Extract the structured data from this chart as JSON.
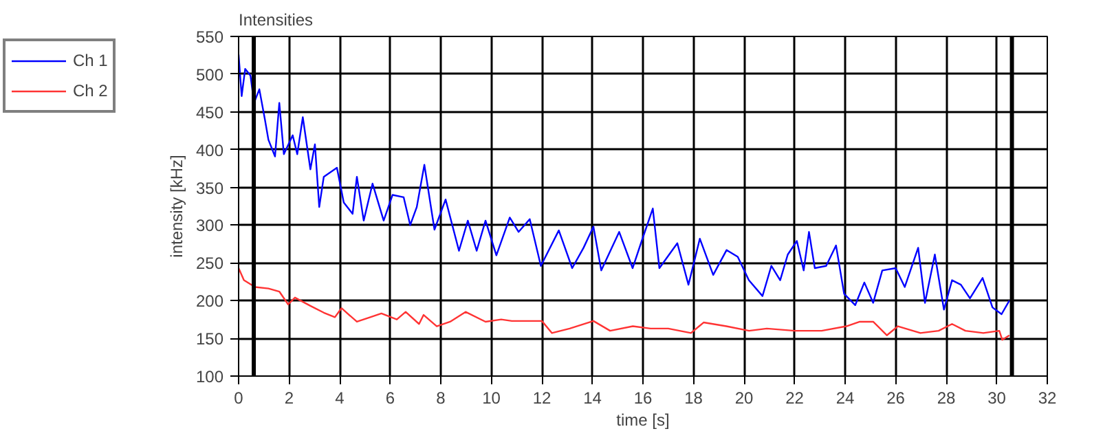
{
  "chart_data": {
    "type": "line",
    "title": "Intensities",
    "xlabel": "time [s]",
    "ylabel": "intensity [kHz]",
    "xlim": [
      0,
      32
    ],
    "ylim": [
      100,
      550
    ],
    "xticks": [
      0,
      2,
      4,
      6,
      8,
      10,
      12,
      14,
      16,
      18,
      20,
      22,
      24,
      26,
      28,
      30,
      32
    ],
    "yticks": [
      100,
      150,
      200,
      250,
      300,
      350,
      400,
      450,
      500,
      550
    ],
    "grid": true,
    "legend": "top left",
    "line_style": "solid",
    "ref_lines": [
      {
        "axis": "x",
        "value": 0.6,
        "color": "#000000"
      },
      {
        "axis": "x",
        "value": 30.6,
        "color": "#000000"
      }
    ],
    "series": [
      {
        "name": "Ch 1",
        "color": "#0000ff",
        "x": [
          0,
          0.12,
          0.26,
          0.47,
          0.61,
          0.82,
          1.04,
          1.18,
          1.44,
          1.61,
          1.79,
          2.14,
          2.32,
          2.54,
          2.84,
          3.02,
          3.19,
          3.37,
          3.89,
          4.16,
          4.51,
          4.68,
          4.95,
          5.3,
          5.74,
          6.09,
          6.53,
          6.79,
          7.05,
          7.35,
          7.75,
          8.19,
          8.72,
          9.07,
          9.42,
          9.77,
          10.2,
          10.73,
          11.08,
          11.52,
          11.96,
          12.67,
          13.2,
          13.65,
          14.04,
          14.35,
          15.06,
          15.59,
          15.95,
          16.39,
          16.65,
          17.36,
          17.8,
          18.25,
          18.78,
          19.31,
          19.75,
          20.19,
          20.73,
          21.08,
          21.43,
          21.73,
          22.09,
          22.36,
          22.57,
          22.8,
          23.25,
          23.64,
          23.96,
          24.4,
          24.76,
          25.11,
          25.47,
          26.0,
          26.36,
          26.89,
          27.16,
          27.55,
          27.91,
          28.23,
          28.58,
          28.94,
          29.44,
          29.83,
          30.19,
          30.5
        ],
        "values": [
          526,
          471,
          507,
          498,
          462,
          480,
          440,
          413,
          391,
          462,
          394,
          419,
          394,
          443,
          374,
          407,
          324,
          364,
          376,
          330,
          315,
          364,
          306,
          355,
          306,
          340,
          337,
          300,
          324,
          380,
          294,
          334,
          266,
          306,
          266,
          306,
          260,
          310,
          291,
          308,
          246,
          293,
          243,
          270,
          298,
          240,
          291,
          243,
          279,
          322,
          243,
          276,
          221,
          282,
          234,
          267,
          258,
          227,
          206,
          246,
          227,
          261,
          279,
          240,
          291,
          243,
          246,
          273,
          209,
          194,
          224,
          197,
          240,
          243,
          218,
          270,
          197,
          261,
          188,
          227,
          221,
          203,
          230,
          191,
          182,
          200
        ]
      },
      {
        "name": "Ch 2",
        "color": "#ff3333",
        "x": [
          0,
          0.21,
          0.65,
          1.18,
          1.61,
          1.96,
          2.23,
          2.84,
          3.37,
          3.81,
          4.07,
          4.68,
          5.21,
          5.65,
          6.26,
          6.61,
          7.14,
          7.32,
          7.84,
          8.37,
          8.98,
          9.77,
          10.39,
          10.81,
          11.52,
          12.0,
          12.4,
          13.1,
          14.04,
          14.7,
          15.6,
          16.3,
          17.0,
          17.9,
          18.4,
          19.3,
          20.2,
          20.9,
          22.0,
          23.07,
          24.05,
          24.58,
          25.11,
          25.65,
          26.09,
          26.98,
          27.7,
          28.23,
          28.76,
          29.47,
          30.1,
          30.22,
          30.5
        ],
        "values": [
          243,
          227,
          218,
          216,
          212,
          195,
          204,
          193,
          184,
          178,
          190,
          172,
          178,
          183,
          175,
          185,
          169,
          181,
          166,
          172,
          185,
          172,
          175,
          173,
          173,
          173,
          157,
          163,
          173,
          160,
          166,
          163,
          163,
          157,
          171,
          166,
          160,
          163,
          160,
          160,
          166,
          172,
          172,
          154,
          166,
          157,
          160,
          169,
          160,
          157,
          160,
          148,
          154
        ]
      }
    ]
  }
}
